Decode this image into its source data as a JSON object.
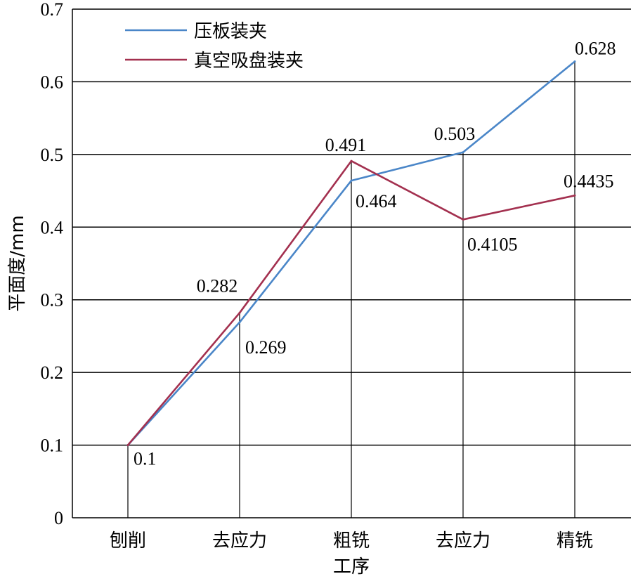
{
  "chart_data": {
    "type": "line",
    "xlabel": "工序",
    "ylabel": "平面度/mm",
    "categories": [
      "刨削",
      "去应力",
      "粗铣",
      "去应力",
      "精铣"
    ],
    "ylim": [
      0,
      0.7
    ],
    "yticks": [
      "0",
      "0.1",
      "0.2",
      "0.3",
      "0.4",
      "0.5",
      "0.6",
      "0.7"
    ],
    "grid": "horizontal",
    "legend_position": "top-left",
    "series": [
      {
        "name": "压板装夹",
        "color": "#4a86c8",
        "values": [
          0.1,
          0.269,
          0.464,
          0.503,
          0.628
        ],
        "labels": [
          "0.1",
          "0.269",
          "0.464",
          "0.503",
          "0.628"
        ]
      },
      {
        "name": "真空吸盘装夹",
        "color": "#a3304f",
        "values": [
          0.1,
          0.282,
          0.491,
          0.4105,
          0.4435
        ],
        "labels": [
          "",
          "0.282",
          "0.491",
          "0.4105",
          "0.4435"
        ]
      }
    ]
  }
}
